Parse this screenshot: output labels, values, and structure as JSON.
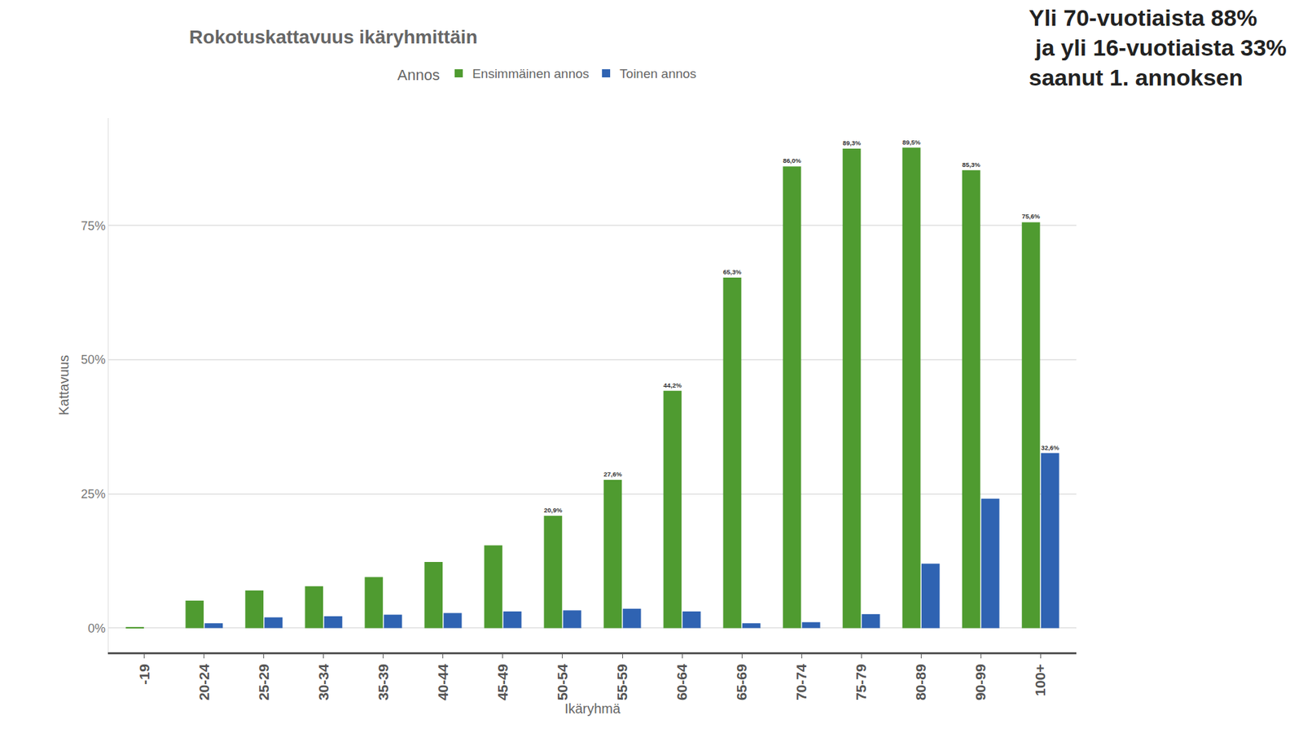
{
  "chart_data": {
    "type": "bar",
    "title": "Rokotuskattavuus ikäryhmittäin",
    "x_label": "Ikäryhmä",
    "y_label": "Kattavuus",
    "legend_title": "Annos",
    "legend": "top",
    "annotations": [
      "Yli 70-vuotiaista 88%\n ja yli 16-vuotiaista 33%\nsaanut 1. annoksen"
    ],
    "categories": [
      "-19",
      "20-24",
      "25-29",
      "30-34",
      "35-39",
      "40-44",
      "45-49",
      "50-54",
      "55-59",
      "60-64",
      "65-69",
      "70-74",
      "75-79",
      "80-89",
      "90-99",
      "100+"
    ],
    "series": [
      {
        "name": "Ensimmäinen annos",
        "color": "#4f9b30",
        "values": [
          0.2,
          5.1,
          7.0,
          7.8,
          9.5,
          12.3,
          15.4,
          20.9,
          27.6,
          44.2,
          65.3,
          86.0,
          89.3,
          89.5,
          85.3,
          75.6
        ],
        "value_labels": [
          null,
          null,
          null,
          null,
          null,
          null,
          null,
          "20,9%",
          "27,6%",
          "44,2%",
          "65,3%",
          "86,0%",
          "89,3%",
          "89,5%",
          "85,3%",
          "75,6%"
        ]
      },
      {
        "name": "Toinen annos",
        "color": "#2f63b2",
        "values": [
          0.0,
          0.9,
          2.0,
          2.2,
          2.5,
          2.8,
          3.1,
          3.3,
          3.6,
          3.1,
          0.9,
          1.1,
          2.6,
          12.0,
          24.1,
          32.6
        ],
        "value_labels": [
          null,
          null,
          null,
          null,
          null,
          null,
          null,
          null,
          null,
          null,
          null,
          null,
          null,
          null,
          null,
          "32,6%"
        ]
      }
    ],
    "ylim": [
      -4.5,
      95
    ],
    "yticks": [
      {
        "value": 0,
        "label": "0%"
      },
      {
        "value": 25,
        "label": "25%"
      },
      {
        "value": 50,
        "label": "50%"
      },
      {
        "value": 75,
        "label": "75%"
      }
    ],
    "grid": true,
    "data_labels": true
  }
}
